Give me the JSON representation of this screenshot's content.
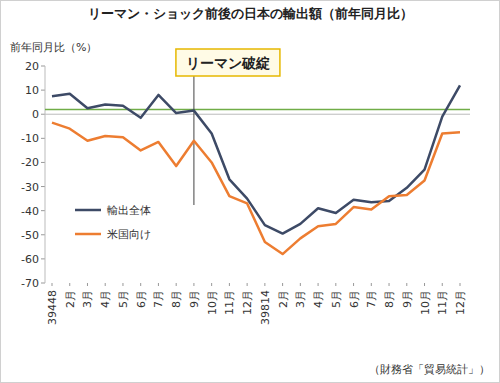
{
  "chart_data": {
    "type": "line",
    "title": "リーマン・ショック前後の日本の輸出額（前年同月比）",
    "y_label": "前年同月比（%）",
    "source": "（財務省「貿易統計」）",
    "categories": [
      "39448",
      "2月",
      "3月",
      "4月",
      "5月",
      "6月",
      "7月",
      "8月",
      "9月",
      "10月",
      "11月",
      "12月",
      "39814",
      "2月",
      "3月",
      "4月",
      "5月",
      "6月",
      "7月",
      "8月",
      "9月",
      "10月",
      "11月",
      "12月"
    ],
    "series": [
      {
        "name": "輸出全体",
        "color": "#3d4a66",
        "values": [
          7.5,
          8.5,
          2.5,
          4,
          3.5,
          -1.5,
          8,
          0.5,
          1.5,
          -8,
          -27,
          -35,
          -46,
          -49.5,
          -45.5,
          -39,
          -41,
          -35.5,
          -36.5,
          -36,
          -30.5,
          -23,
          -1,
          12
        ]
      },
      {
        "name": "米国向け",
        "color": "#ed7d31",
        "values": [
          -3.5,
          -6,
          -11,
          -9,
          -9.5,
          -15,
          -11.5,
          -21.5,
          -11,
          -20,
          -34,
          -37,
          -53,
          -58,
          -51.5,
          -46.5,
          -45.5,
          -38.5,
          -39.5,
          -34,
          -33.5,
          -27.5,
          -8,
          -7.5
        ]
      }
    ],
    "ylim": [
      -70,
      20
    ],
    "yticks": [
      20,
      10,
      0,
      -10,
      -20,
      -30,
      -40,
      -50,
      -60,
      -70
    ],
    "grid": false,
    "legend": "left",
    "annotation": {
      "text": "リーマン破綻",
      "x_index": 8
    },
    "reference_line": {
      "value": 2,
      "color": "#70ad47"
    }
  }
}
